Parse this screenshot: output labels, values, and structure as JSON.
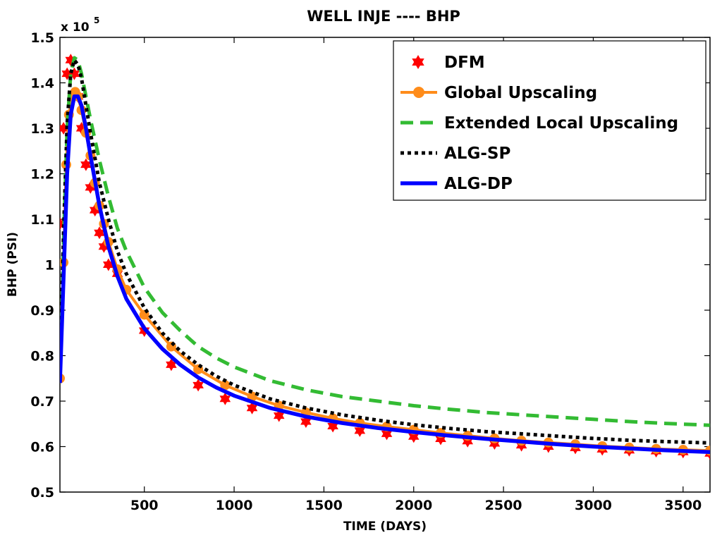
{
  "chart_data": {
    "type": "line",
    "title": "WELL INJE ---- BHP",
    "xlabel": "TIME (DAYS)",
    "ylabel": "BHP (PSI)",
    "y_exponent_label": "x 10",
    "y_exponent_power": "5",
    "xlim": [
      30,
      3650
    ],
    "ylim": [
      0.5,
      1.5
    ],
    "x_ticks": [
      500,
      1000,
      1500,
      2000,
      2500,
      3000,
      3500
    ],
    "x_tick_labels": [
      "500",
      "1000",
      "1500",
      "2000",
      "2500",
      "3000",
      "3500"
    ],
    "y_ticks": [
      0.5,
      0.6,
      0.7,
      0.8,
      0.9,
      1.0,
      1.1,
      1.2,
      1.3,
      1.4,
      1.5
    ],
    "y_tick_labels": [
      "0.5",
      "0.6",
      "0.7",
      "0.8",
      "0.9",
      "1",
      "1.1",
      "1.2",
      "1.3",
      "1.4",
      "1.5"
    ],
    "grid": false,
    "legend_position": "top-right",
    "series": [
      {
        "name": "DFM",
        "style": "markers",
        "marker": "hexagram",
        "color": "#ff0000",
        "x": [
          30,
          50,
          70,
          90,
          110,
          130,
          150,
          175,
          200,
          225,
          250,
          275,
          300,
          350,
          500,
          650,
          800,
          950,
          1100,
          1250,
          1400,
          1550,
          1700,
          1850,
          2000,
          2150,
          2300,
          2450,
          2600,
          2750,
          2900,
          3050,
          3200,
          3350,
          3500,
          3650
        ],
        "y": [
          1.09,
          1.3,
          1.42,
          1.45,
          1.42,
          1.37,
          1.3,
          1.22,
          1.17,
          1.12,
          1.07,
          1.04,
          1.0,
          0.98,
          0.855,
          0.78,
          0.735,
          0.705,
          0.685,
          0.668,
          0.655,
          0.645,
          0.635,
          0.628,
          0.622,
          0.617,
          0.612,
          0.607,
          0.603,
          0.6,
          0.597,
          0.594,
          0.592,
          0.59,
          0.588,
          0.585
        ]
      },
      {
        "name": "Global Upscaling",
        "style": "solid",
        "marker": "circle",
        "color": "#ff8c1a",
        "x": [
          30,
          50,
          65,
          80,
          100,
          115,
          130,
          150,
          175,
          200,
          225,
          250,
          275,
          300,
          350,
          400,
          500,
          650,
          800,
          950,
          1100,
          1250,
          1400,
          1550,
          1700,
          1850,
          2000,
          2150,
          2300,
          2450,
          2600,
          2750,
          2900,
          3050,
          3200,
          3350,
          3500,
          3650
        ],
        "y": [
          0.75,
          1.005,
          1.22,
          1.33,
          1.37,
          1.38,
          1.37,
          1.34,
          1.29,
          1.24,
          1.18,
          1.13,
          1.09,
          1.05,
          0.99,
          0.945,
          0.89,
          0.82,
          0.77,
          0.735,
          0.71,
          0.69,
          0.675,
          0.662,
          0.652,
          0.644,
          0.637,
          0.63,
          0.624,
          0.618,
          0.613,
          0.609,
          0.605,
          0.601,
          0.598,
          0.595,
          0.593,
          0.591
        ]
      },
      {
        "name": "Extended Local Upscaling",
        "style": "dashed",
        "color": "#33bb33",
        "x": [
          30,
          50,
          70,
          90,
          110,
          130,
          150,
          175,
          200,
          250,
          300,
          350,
          400,
          500,
          600,
          700,
          800,
          900,
          1000,
          1200,
          1400,
          1600,
          1800,
          2000,
          2200,
          2400,
          2600,
          2800,
          3000,
          3200,
          3400,
          3650
        ],
        "y": [
          0.74,
          1.05,
          1.3,
          1.42,
          1.455,
          1.45,
          1.42,
          1.37,
          1.32,
          1.23,
          1.15,
          1.08,
          1.03,
          0.95,
          0.895,
          0.855,
          0.82,
          0.795,
          0.775,
          0.745,
          0.725,
          0.71,
          0.7,
          0.69,
          0.682,
          0.675,
          0.67,
          0.665,
          0.66,
          0.655,
          0.651,
          0.647
        ]
      },
      {
        "name": "ALG-SP",
        "style": "dotted",
        "color": "#000000",
        "x": [
          30,
          50,
          70,
          90,
          110,
          130,
          150,
          175,
          200,
          250,
          300,
          350,
          400,
          500,
          600,
          700,
          800,
          900,
          1000,
          1200,
          1400,
          1600,
          1800,
          2000,
          2200,
          2400,
          2600,
          2800,
          3000,
          3200,
          3400,
          3650
        ],
        "y": [
          0.74,
          1.07,
          1.31,
          1.42,
          1.45,
          1.44,
          1.41,
          1.35,
          1.29,
          1.18,
          1.1,
          1.03,
          0.98,
          0.905,
          0.85,
          0.81,
          0.78,
          0.755,
          0.735,
          0.705,
          0.685,
          0.67,
          0.658,
          0.648,
          0.64,
          0.633,
          0.628,
          0.623,
          0.618,
          0.614,
          0.611,
          0.608
        ]
      },
      {
        "name": "ALG-DP",
        "style": "solid",
        "color": "#0000ff",
        "x": [
          30,
          50,
          70,
          90,
          110,
          130,
          150,
          175,
          200,
          250,
          300,
          350,
          400,
          500,
          600,
          700,
          800,
          900,
          1000,
          1200,
          1400,
          1600,
          1800,
          2000,
          2200,
          2400,
          2600,
          2800,
          3000,
          3200,
          3400,
          3650
        ],
        "y": [
          0.74,
          0.97,
          1.2,
          1.33,
          1.37,
          1.37,
          1.35,
          1.3,
          1.24,
          1.13,
          1.04,
          0.975,
          0.925,
          0.86,
          0.815,
          0.78,
          0.752,
          0.73,
          0.712,
          0.685,
          0.666,
          0.652,
          0.641,
          0.632,
          0.624,
          0.617,
          0.611,
          0.605,
          0.6,
          0.596,
          0.592,
          0.588
        ]
      }
    ]
  }
}
